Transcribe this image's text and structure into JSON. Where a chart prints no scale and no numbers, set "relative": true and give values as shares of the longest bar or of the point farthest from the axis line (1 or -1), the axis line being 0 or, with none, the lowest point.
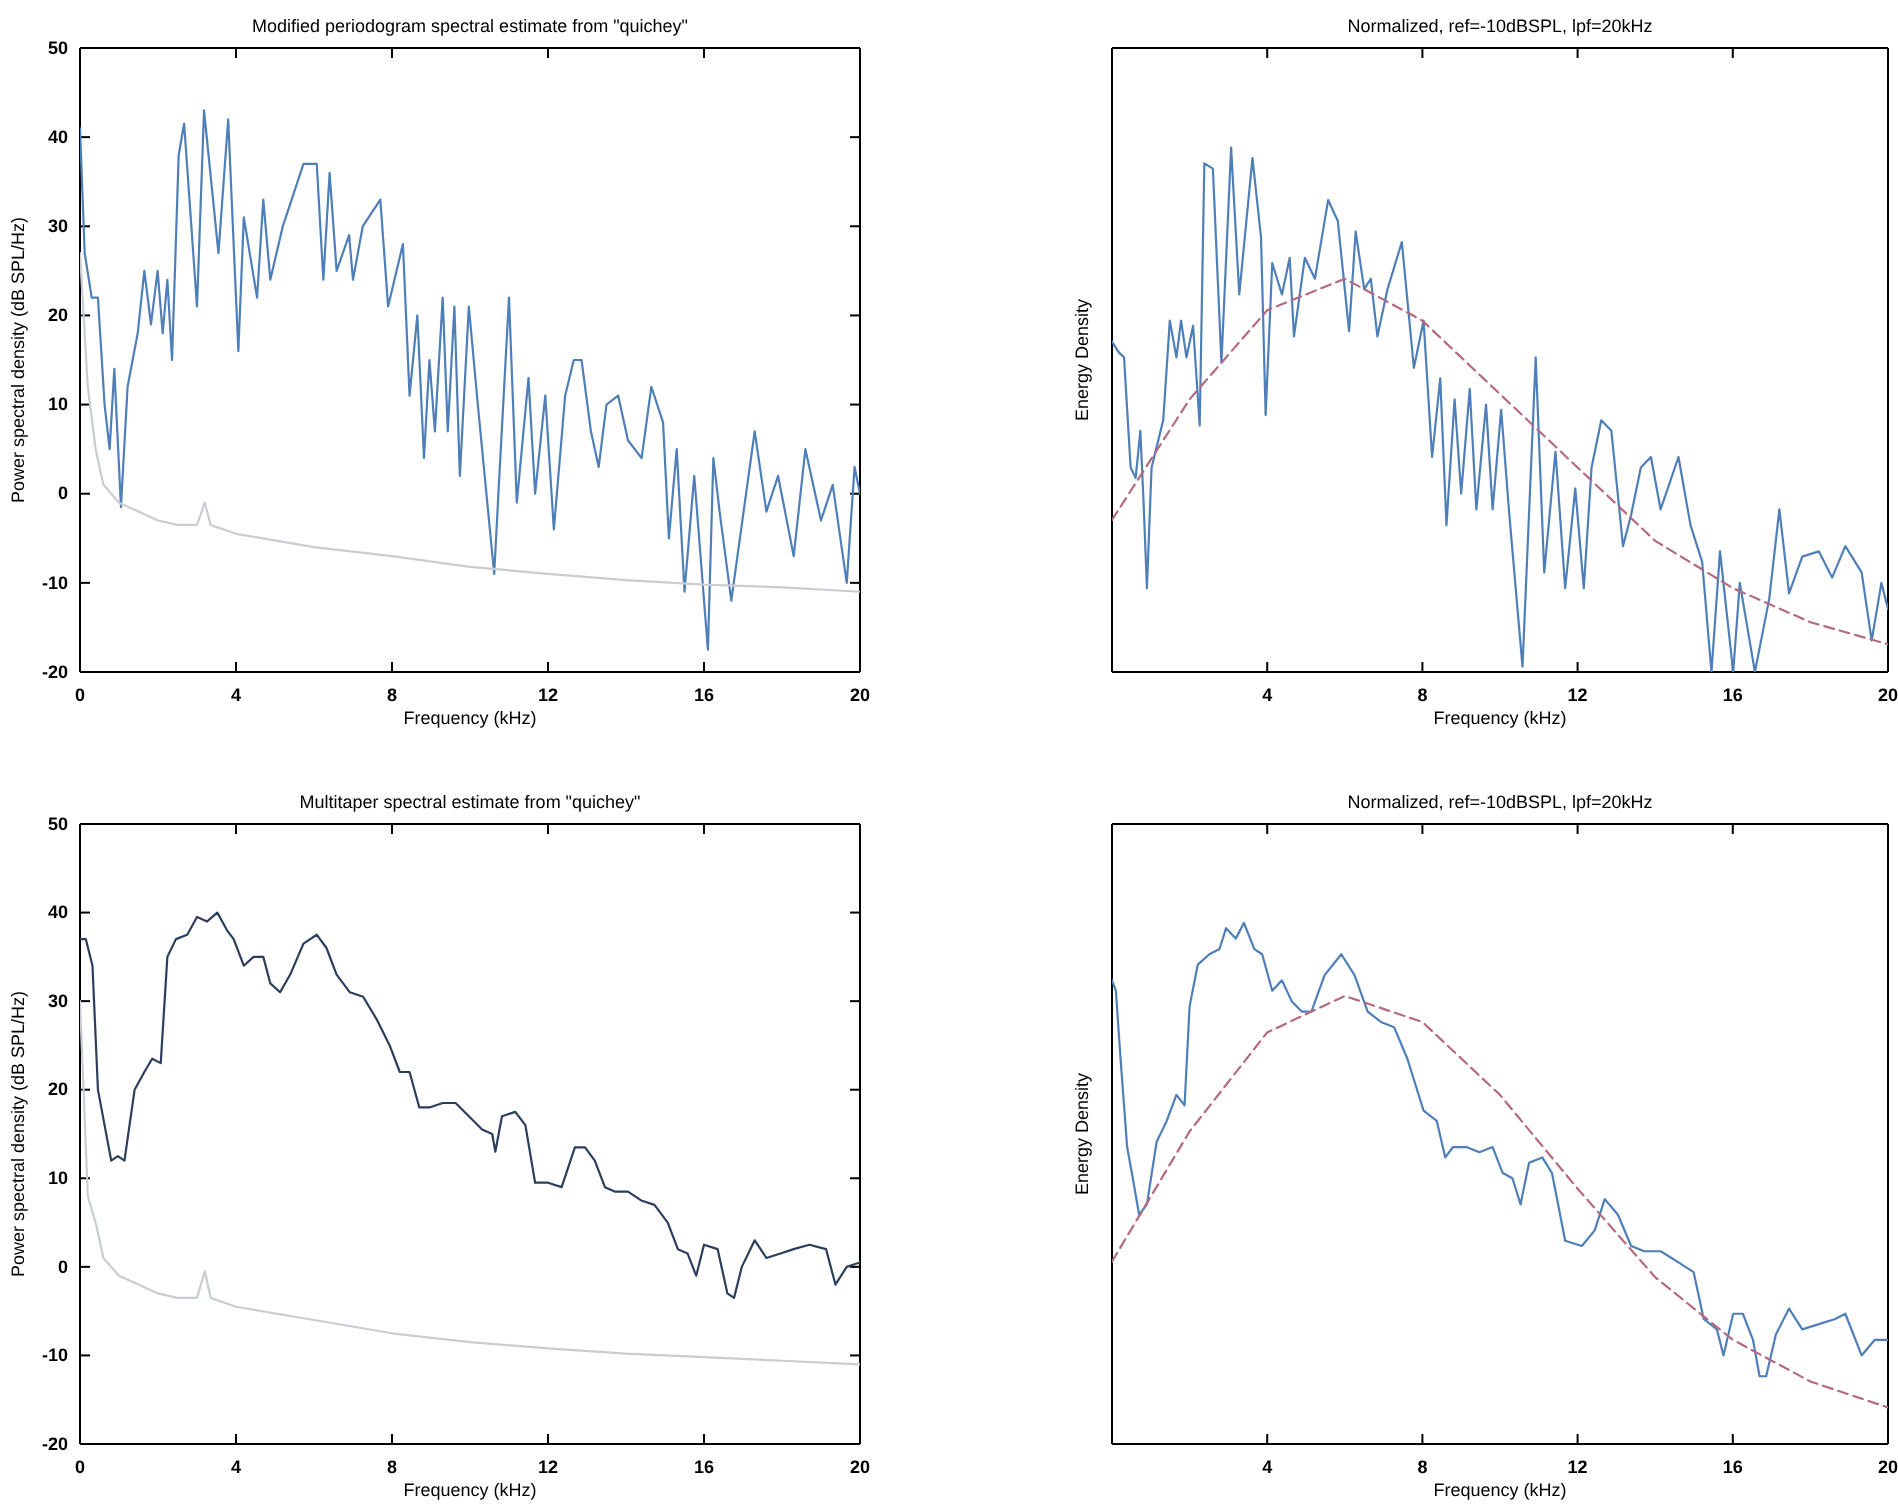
{
  "chart_data": [
    {
      "type": "line",
      "title": "Modified periodogram spectral estimate from \"quichey\"",
      "xlabel": "Frequency (kHz)",
      "ylabel": "Power spectral density (dB SPL/Hz)",
      "xlim": [
        0,
        20
      ],
      "ylim": [
        -20,
        50
      ],
      "xticks": [
        0,
        4,
        8,
        12,
        16,
        20
      ],
      "yticks": [
        -20,
        -10,
        0,
        10,
        20,
        30,
        40,
        50
      ],
      "series": [
        {
          "color": "#4f7fb8",
          "x": [
            0,
            0.12,
            0.3,
            0.46,
            0.63,
            0.76,
            0.88,
            1.05,
            1.22,
            1.48,
            1.65,
            1.82,
            1.99,
            2.12,
            2.24,
            2.36,
            2.53,
            2.67,
            3.0,
            3.18,
            3.55,
            3.8,
            4.06,
            4.2,
            4.54,
            4.7,
            4.88,
            5.2,
            5.73,
            6.07,
            6.24,
            6.4,
            6.58,
            6.9,
            7.0,
            7.25,
            7.7,
            7.9,
            8.28,
            8.45,
            8.65,
            8.82,
            8.96,
            9.1,
            9.3,
            9.43,
            9.6,
            9.74,
            9.97,
            10.2,
            10.62,
            10.74,
            11.0,
            11.2,
            11.5,
            11.67,
            11.93,
            12.15,
            12.44,
            12.66,
            12.86,
            13.1,
            13.3,
            13.5,
            13.8,
            14.05,
            14.4,
            14.65,
            14.95,
            15.1,
            15.3,
            15.5,
            15.75,
            16.1,
            16.24,
            16.4,
            16.7,
            17.3,
            17.6,
            17.9,
            18.3,
            18.6,
            19.0,
            19.3,
            19.66,
            19.86,
            20
          ],
          "values": [
            41,
            27,
            22,
            22,
            10,
            5,
            14,
            -1.5,
            12,
            18,
            25,
            19,
            25,
            18,
            24,
            15,
            38,
            41.5,
            21,
            43,
            27,
            42,
            16,
            31,
            22,
            33,
            24,
            30,
            37,
            37,
            24,
            36,
            25,
            29,
            24,
            30,
            33,
            21,
            28,
            11,
            20,
            4,
            15,
            7,
            22,
            7,
            21,
            2,
            21,
            10,
            -9,
            1,
            22,
            -1,
            13,
            0,
            11,
            -4,
            11,
            15,
            15,
            7,
            3,
            10,
            11,
            6,
            4,
            12,
            8,
            -5,
            5,
            -11,
            2,
            -17.5,
            4,
            -2,
            -12,
            7,
            -2,
            2,
            -7,
            5,
            -3,
            1,
            -10,
            3,
            0
          ]
        },
        {
          "color": "#c9cdd2",
          "x": [
            0,
            0.2,
            0.4,
            0.6,
            1,
            1.5,
            2,
            2.5,
            3,
            3.2,
            3.35,
            4,
            6,
            8,
            10,
            12,
            14,
            16,
            18,
            20
          ],
          "values": [
            27,
            12,
            5,
            1,
            -1,
            -2,
            -3,
            -3.5,
            -3.5,
            -1,
            -3.5,
            -4.5,
            -6,
            -7,
            -8.2,
            -9,
            -9.7,
            -10.2,
            -10.5,
            -11
          ]
        }
      ]
    },
    {
      "type": "line",
      "title": "Normalized, ref=-10dBSPL, lpf=20kHz",
      "xlabel": "Frequency (kHz)",
      "ylabel": "Energy Density",
      "relative": true,
      "xlim": [
        0,
        20
      ],
      "xticks": [
        {
          "value": 0,
          "label": null
        },
        4,
        8,
        12,
        16,
        20
      ],
      "series": [
        {
          "color": "#4f7fb8",
          "x": [
            0,
            0.17,
            0.31,
            0.48,
            0.61,
            0.73,
            0.81,
            0.9,
            1.02,
            1.32,
            1.49,
            1.66,
            1.78,
            1.92,
            2.09,
            2.26,
            2.38,
            2.6,
            2.82,
            3.07,
            3.28,
            3.62,
            3.84,
            3.96,
            4.13,
            4.38,
            4.58,
            4.69,
            4.97,
            5.23,
            5.57,
            5.82,
            6.11,
            6.28,
            6.5,
            6.67,
            6.84,
            7.1,
            7.47,
            7.78,
            8.03,
            8.25,
            8.46,
            8.62,
            8.83,
            9.0,
            9.22,
            9.39,
            9.64,
            9.81,
            10.03,
            10.24,
            10.58,
            10.92,
            11.14,
            11.43,
            11.68,
            11.94,
            12.16,
            12.36,
            12.61,
            12.87,
            13.17,
            13.38,
            13.63,
            13.89,
            14.14,
            14.6,
            14.91,
            15.21,
            15.45,
            15.67,
            16.01,
            16.18,
            16.57,
            16.94,
            17.2,
            17.45,
            17.79,
            18.22,
            18.56,
            18.9,
            19.32,
            19.58,
            19.83,
            20
          ],
          "values": [
            0.63,
            0.61,
            0.6,
            0.39,
            0.37,
            0.46,
            0.33,
            0.16,
            0.39,
            0.48,
            0.67,
            0.6,
            0.67,
            0.6,
            0.66,
            0.47,
            0.97,
            0.96,
            0.59,
            1,
            0.72,
            0.98,
            0.83,
            0.49,
            0.78,
            0.72,
            0.79,
            0.64,
            0.79,
            0.75,
            0.9,
            0.86,
            0.65,
            0.84,
            0.73,
            0.75,
            0.64,
            0.73,
            0.82,
            0.58,
            0.67,
            0.41,
            0.56,
            0.28,
            0.52,
            0.34,
            0.54,
            0.31,
            0.51,
            0.31,
            0.5,
            0.3,
            0.01,
            0.6,
            0.19,
            0.42,
            0.16,
            0.35,
            0.16,
            0.39,
            0.48,
            0.46,
            0.24,
            0.3,
            0.39,
            0.41,
            0.31,
            0.41,
            0.28,
            0.21,
            0,
            0.23,
            0,
            0.17,
            0,
            0.14,
            0.31,
            0.15,
            0.22,
            0.23,
            0.18,
            0.24,
            0.19,
            0.06,
            0.17,
            0.12
          ]
        },
        {
          "color": "#b56a7e",
          "line_style": "dashed",
          "x": [
            0,
            2,
            4,
            6,
            8,
            10,
            12,
            14,
            16,
            18,
            20
          ],
          "values": [
            0.29,
            0.52,
            0.69,
            0.75,
            0.67,
            0.53,
            0.39,
            0.25,
            0.16,
            0.095,
            0.053
          ]
        }
      ]
    },
    {
      "type": "line",
      "title": "Multitaper spectral estimate from \"quichey\"",
      "xlabel": "Frequency (kHz)",
      "ylabel": "Power spectral density (dB SPL/Hz)",
      "xlim": [
        0,
        20
      ],
      "ylim": [
        -20,
        50
      ],
      "xticks": [
        0,
        4,
        8,
        12,
        16,
        20
      ],
      "yticks": [
        -20,
        -10,
        0,
        10,
        20,
        30,
        40,
        50
      ],
      "series": [
        {
          "color": "#2b3f5c",
          "x": [
            0,
            0.15,
            0.32,
            0.46,
            0.63,
            0.8,
            0.97,
            1.14,
            1.4,
            1.65,
            1.85,
            2.07,
            2.24,
            2.46,
            2.75,
            3.0,
            3.26,
            3.52,
            3.77,
            3.94,
            4.2,
            4.45,
            4.7,
            4.88,
            5.13,
            5.39,
            5.73,
            6.07,
            6.32,
            6.58,
            6.92,
            7.26,
            7.6,
            7.94,
            8.2,
            8.45,
            8.7,
            8.96,
            9.3,
            9.63,
            9.97,
            10.31,
            10.57,
            10.65,
            10.82,
            11.16,
            11.42,
            11.67,
            12.0,
            12.35,
            12.69,
            12.95,
            13.2,
            13.46,
            13.71,
            14.05,
            14.39,
            14.73,
            15.07,
            15.33,
            15.58,
            15.8,
            16.0,
            16.35,
            16.6,
            16.77,
            16.97,
            17.3,
            17.6,
            17.96,
            18.3,
            18.7,
            19.13,
            19.37,
            19.66,
            20
          ],
          "values": [
            37,
            37,
            34,
            20,
            16,
            12,
            12.5,
            12,
            20,
            22,
            23.5,
            23,
            35,
            37,
            37.5,
            39.5,
            39,
            40,
            38,
            37,
            34,
            35,
            35,
            32,
            31,
            33,
            36.5,
            37.5,
            36,
            33,
            31,
            30.5,
            28,
            25,
            22,
            22,
            18,
            18,
            18.5,
            18.5,
            17,
            15.5,
            15,
            13,
            17,
            17.5,
            16,
            9.5,
            9.5,
            9,
            13.5,
            13.5,
            12,
            9,
            8.5,
            8.5,
            7.5,
            7,
            5,
            2,
            1.5,
            -1,
            2.5,
            2,
            -3,
            -3.5,
            0,
            3,
            1,
            1.5,
            2,
            2.5,
            2,
            -2,
            0,
            0.5
          ]
        },
        {
          "color": "#c9cdd2",
          "x": [
            0,
            0.2,
            0.4,
            0.6,
            1,
            1.5,
            2,
            2.5,
            3,
            3.2,
            3.35,
            4,
            6,
            8,
            10,
            12,
            14,
            16,
            18,
            20
          ],
          "values": [
            30,
            8,
            5,
            1,
            -1,
            -2,
            -3,
            -3.5,
            -3.5,
            -0.5,
            -3.5,
            -4.5,
            -6,
            -7.5,
            -8.5,
            -9.2,
            -9.8,
            -10.2,
            -10.6,
            -11
          ]
        }
      ]
    },
    {
      "type": "line",
      "title": "Normalized, ref=-10dBSPL, lpf=20kHz",
      "xlabel": "Frequency (kHz)",
      "ylabel": "Energy Density",
      "relative": true,
      "xlim": [
        0,
        20
      ],
      "xticks": [
        {
          "value": 0,
          "label": null
        },
        4,
        8,
        12,
        16,
        20
      ],
      "series": [
        {
          "color": "#4f7fb8",
          "x": [
            0,
            0.1,
            0.22,
            0.39,
            0.56,
            0.7,
            0.9,
            1.15,
            1.41,
            1.66,
            1.87,
            2.0,
            2.21,
            2.51,
            2.77,
            2.94,
            3.19,
            3.4,
            3.67,
            3.87,
            4.13,
            4.38,
            4.63,
            4.89,
            5.14,
            5.48,
            5.91,
            6.25,
            6.59,
            6.93,
            7.27,
            7.61,
            8.03,
            8.37,
            8.59,
            8.79,
            9.13,
            9.47,
            9.81,
            10.07,
            10.32,
            10.53,
            10.75,
            11.09,
            11.34,
            11.68,
            12.11,
            12.44,
            12.7,
            13.04,
            13.38,
            13.72,
            14.14,
            14.57,
            14.99,
            15.25,
            15.59,
            15.76,
            16.01,
            16.26,
            16.52,
            16.69,
            16.86,
            17.11,
            17.45,
            17.79,
            18.22,
            18.64,
            18.9,
            19.32,
            19.66,
            20
          ],
          "values": [
            0.89,
            0.87,
            0.74,
            0.57,
            0.5,
            0.44,
            0.46,
            0.58,
            0.62,
            0.67,
            0.65,
            0.84,
            0.92,
            0.94,
            0.95,
            0.99,
            0.97,
            1,
            0.95,
            0.94,
            0.87,
            0.89,
            0.85,
            0.83,
            0.83,
            0.9,
            0.94,
            0.9,
            0.83,
            0.81,
            0.8,
            0.74,
            0.64,
            0.62,
            0.55,
            0.57,
            0.57,
            0.56,
            0.57,
            0.52,
            0.51,
            0.46,
            0.54,
            0.55,
            0.52,
            0.39,
            0.38,
            0.41,
            0.47,
            0.44,
            0.38,
            0.37,
            0.37,
            0.35,
            0.33,
            0.24,
            0.22,
            0.17,
            0.25,
            0.25,
            0.2,
            0.13,
            0.13,
            0.21,
            0.26,
            0.22,
            0.23,
            0.24,
            0.25,
            0.17,
            0.2,
            0.2
          ]
        },
        {
          "color": "#b56a7e",
          "line_style": "dashed",
          "x": [
            0,
            2,
            4,
            6,
            8,
            10,
            12,
            14,
            16,
            18,
            20
          ],
          "values": [
            0.35,
            0.6,
            0.79,
            0.86,
            0.81,
            0.67,
            0.49,
            0.32,
            0.2,
            0.12,
            0.07
          ]
        }
      ]
    }
  ]
}
